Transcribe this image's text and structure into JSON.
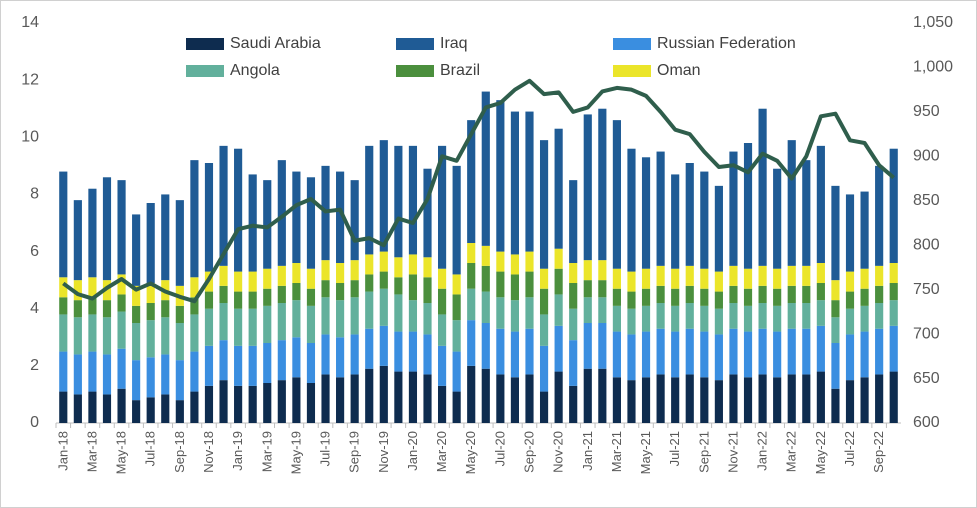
{
  "chart_data": {
    "type": "bar",
    "categories": [
      "Jan-18",
      null,
      "Mar-18",
      null,
      "May-18",
      null,
      "Jul-18",
      null,
      "Sep-18",
      null,
      "Nov-18",
      null,
      "Jan-19",
      null,
      "Mar-19",
      null,
      "May-19",
      null,
      "Jul-19",
      null,
      "Sep-19",
      null,
      "Nov-19",
      null,
      "Jan-20",
      null,
      "Mar-20",
      null,
      "May-20",
      null,
      "Jul-20",
      null,
      "Sep-20",
      null,
      "Nov-20",
      null,
      "Jan-21",
      null,
      "Mar-21",
      null,
      "May-21",
      null,
      "Jul-21",
      null,
      "Sep-21",
      null,
      "Nov-21",
      null,
      "Jan-22",
      null,
      "Mar-22",
      null,
      "May-22",
      null,
      "Jul-22",
      null,
      "Sep-22",
      null
    ],
    "series": [
      {
        "name": "Saudi Arabia",
        "color": "#0e2c4f",
        "values": [
          1.1,
          1.0,
          1.1,
          1.0,
          1.2,
          0.8,
          0.9,
          1.0,
          0.8,
          1.1,
          1.3,
          1.5,
          1.3,
          1.3,
          1.4,
          1.5,
          1.6,
          1.4,
          1.7,
          1.6,
          1.7,
          1.9,
          2.0,
          1.8,
          1.8,
          1.7,
          1.3,
          1.1,
          2.0,
          1.9,
          1.7,
          1.6,
          1.7,
          1.1,
          1.8,
          1.3,
          1.9,
          1.9,
          1.6,
          1.5,
          1.6,
          1.7,
          1.6,
          1.7,
          1.6,
          1.5,
          1.7,
          1.6,
          1.7,
          1.6,
          1.7,
          1.7,
          1.8,
          1.2,
          1.5,
          1.6,
          1.7,
          1.8
        ]
      },
      {
        "name": "Russian Federation",
        "color": "#3a8ee0",
        "values": [
          1.4,
          1.4,
          1.4,
          1.4,
          1.4,
          1.4,
          1.4,
          1.4,
          1.4,
          1.4,
          1.4,
          1.4,
          1.4,
          1.4,
          1.4,
          1.4,
          1.4,
          1.4,
          1.4,
          1.4,
          1.4,
          1.4,
          1.4,
          1.4,
          1.4,
          1.4,
          1.4,
          1.4,
          1.6,
          1.6,
          1.6,
          1.6,
          1.6,
          1.6,
          1.6,
          1.6,
          1.6,
          1.6,
          1.6,
          1.6,
          1.6,
          1.6,
          1.6,
          1.6,
          1.6,
          1.6,
          1.6,
          1.6,
          1.6,
          1.6,
          1.6,
          1.6,
          1.6,
          1.6,
          1.6,
          1.6,
          1.6,
          1.6
        ]
      },
      {
        "name": "Angola",
        "color": "#62b09c",
        "values": [
          1.3,
          1.3,
          1.3,
          1.3,
          1.3,
          1.3,
          1.3,
          1.3,
          1.3,
          1.3,
          1.3,
          1.3,
          1.3,
          1.3,
          1.3,
          1.3,
          1.3,
          1.3,
          1.3,
          1.3,
          1.3,
          1.3,
          1.3,
          1.3,
          1.1,
          1.1,
          1.1,
          1.1,
          1.1,
          1.1,
          1.1,
          1.1,
          1.1,
          1.1,
          1.1,
          1.1,
          0.9,
          0.9,
          0.9,
          0.9,
          0.9,
          0.9,
          0.9,
          0.9,
          0.9,
          0.9,
          0.9,
          0.9,
          0.9,
          0.9,
          0.9,
          0.9,
          0.9,
          0.9,
          0.9,
          0.9,
          0.9,
          0.9
        ]
      },
      {
        "name": "Brazil",
        "color": "#4b8f3d",
        "values": [
          0.6,
          0.6,
          0.6,
          0.6,
          0.6,
          0.6,
          0.6,
          0.6,
          0.6,
          0.6,
          0.6,
          0.6,
          0.6,
          0.6,
          0.6,
          0.6,
          0.6,
          0.6,
          0.6,
          0.6,
          0.6,
          0.6,
          0.6,
          0.6,
          0.9,
          0.9,
          0.9,
          0.9,
          0.9,
          0.9,
          0.9,
          0.9,
          0.9,
          0.9,
          0.9,
          0.9,
          0.6,
          0.6,
          0.6,
          0.6,
          0.6,
          0.6,
          0.6,
          0.6,
          0.6,
          0.6,
          0.6,
          0.6,
          0.6,
          0.6,
          0.6,
          0.6,
          0.6,
          0.6,
          0.6,
          0.6,
          0.6,
          0.6
        ]
      },
      {
        "name": "Oman",
        "color": "#ebe52a",
        "values": [
          0.7,
          0.7,
          0.7,
          0.7,
          0.7,
          0.7,
          0.7,
          0.7,
          0.7,
          0.7,
          0.7,
          0.7,
          0.7,
          0.7,
          0.7,
          0.7,
          0.7,
          0.7,
          0.7,
          0.7,
          0.7,
          0.7,
          0.7,
          0.7,
          0.7,
          0.7,
          0.7,
          0.7,
          0.7,
          0.7,
          0.7,
          0.7,
          0.7,
          0.7,
          0.7,
          0.7,
          0.7,
          0.7,
          0.7,
          0.7,
          0.7,
          0.7,
          0.7,
          0.7,
          0.7,
          0.7,
          0.7,
          0.7,
          0.7,
          0.7,
          0.7,
          0.7,
          0.7,
          0.7,
          0.7,
          0.7,
          0.7,
          0.7
        ]
      },
      {
        "name": "Iraq",
        "color": "#1f5b95",
        "values": [
          3.7,
          2.8,
          3.1,
          3.6,
          3.3,
          2.5,
          2.8,
          3.0,
          3.0,
          4.1,
          3.8,
          4.2,
          4.3,
          3.4,
          3.1,
          3.7,
          3.2,
          3.2,
          3.3,
          3.2,
          2.8,
          3.8,
          3.9,
          3.9,
          3.8,
          3.1,
          4.3,
          3.8,
          4.3,
          5.4,
          5.3,
          5.0,
          4.9,
          4.5,
          4.2,
          2.9,
          5.1,
          5.3,
          5.2,
          4.3,
          3.9,
          4.0,
          3.3,
          3.6,
          3.4,
          3.0,
          4.0,
          4.4,
          5.5,
          3.5,
          4.4,
          3.7,
          4.1,
          3.3,
          2.7,
          2.7,
          3.5,
          4.0
        ]
      },
      {
        "type": "line",
        "axis": "y2",
        "color": "#2f5e4c",
        "values": [
          757,
          745,
          740,
          752,
          762,
          750,
          757,
          748,
          742,
          737,
          762,
          790,
          818,
          822,
          820,
          832,
          845,
          852,
          838,
          840,
          805,
          808,
          800,
          830,
          825,
          852,
          900,
          895,
          925,
          955,
          960,
          975,
          985,
          970,
          972,
          950,
          955,
          973,
          977,
          975,
          968,
          950,
          930,
          925,
          905,
          888,
          890,
          882,
          903,
          895,
          875,
          900,
          945,
          948,
          918,
          915,
          890,
          876
        ]
      }
    ],
    "ylim": [
      0,
      14
    ],
    "yticks": [
      0,
      2,
      4,
      6,
      8,
      10,
      12,
      14
    ],
    "y2lim": [
      600,
      1050
    ],
    "y2ticks": [
      600,
      650,
      700,
      750,
      800,
      850,
      900,
      950,
      {
        "value": 1000,
        "label": "1,000"
      },
      {
        "value": 1050,
        "label": "1,050"
      }
    ],
    "legend": "top"
  }
}
